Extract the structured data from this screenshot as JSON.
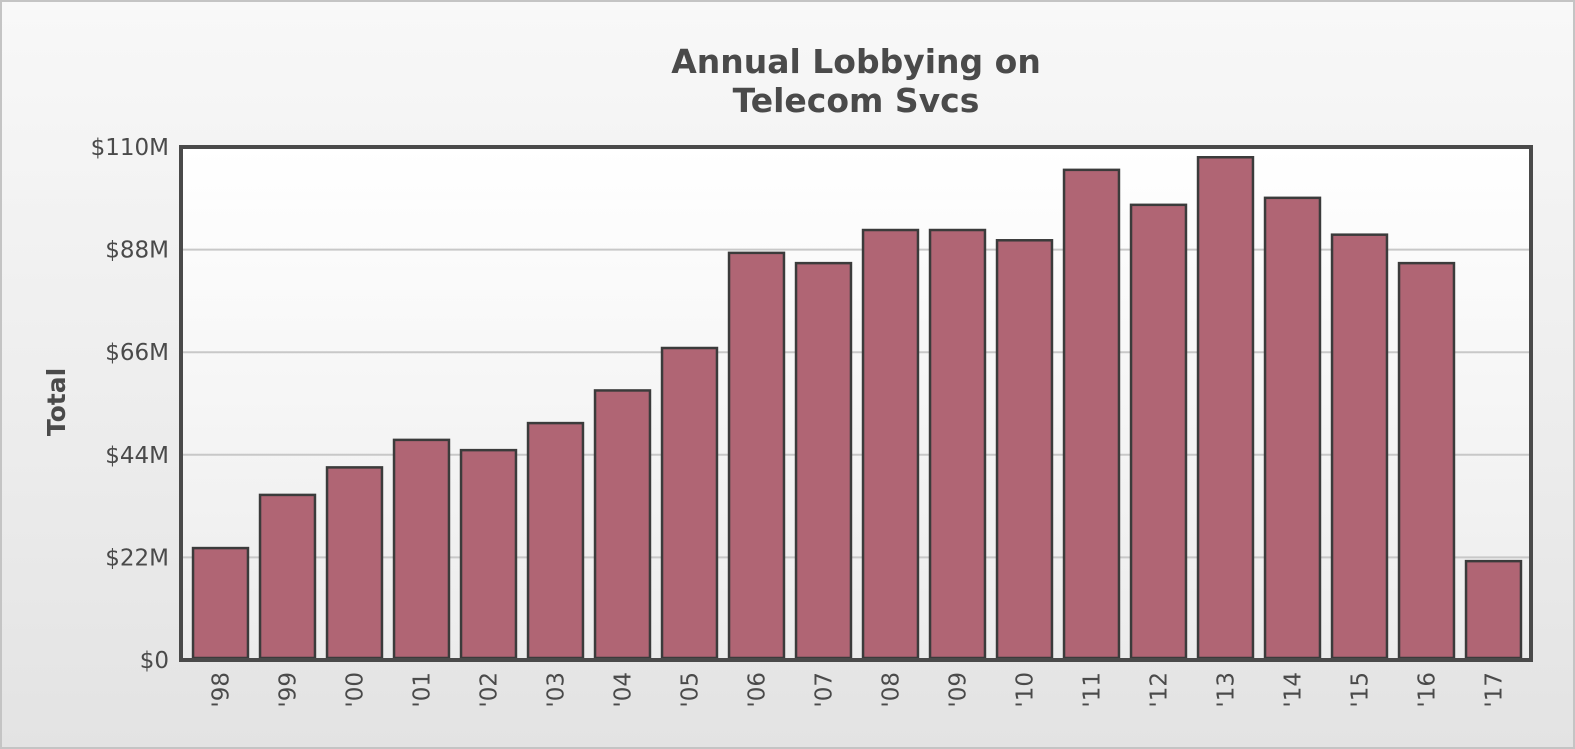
{
  "chart_data": {
    "type": "bar",
    "title": [
      "Annual Lobbying on",
      "Telecom Svcs"
    ],
    "ylabel": "Total",
    "xlabel": "",
    "ylim": [
      0,
      110
    ],
    "y_unit": "$M",
    "y_ticks": [
      0,
      22,
      44,
      66,
      88,
      110
    ],
    "y_tick_labels": [
      "$0",
      "$22M",
      "$44M",
      "$66M",
      "$88M",
      "$110M"
    ],
    "categories": [
      "'98",
      "'99",
      "'00",
      "'01",
      "'02",
      "'03",
      "'04",
      "'05",
      "'06",
      "'07",
      "'08",
      "'09",
      "'10",
      "'11",
      "'12",
      "'13",
      "'14",
      "'15",
      "'16",
      "'17"
    ],
    "values": [
      24,
      35.4,
      41.3,
      47.2,
      45,
      50.8,
      57.8,
      66.9,
      87.3,
      85.1,
      92.2,
      92.2,
      90,
      105.1,
      97.6,
      107.8,
      99.1,
      91.2,
      85.1,
      21.2
    ],
    "grid": true,
    "legend": "none",
    "colors": {
      "bar_fill": "#b06574",
      "bar_stroke": "#3b3b3b",
      "axis": "#4a4a4a",
      "grid": "#c8c8c8"
    }
  }
}
